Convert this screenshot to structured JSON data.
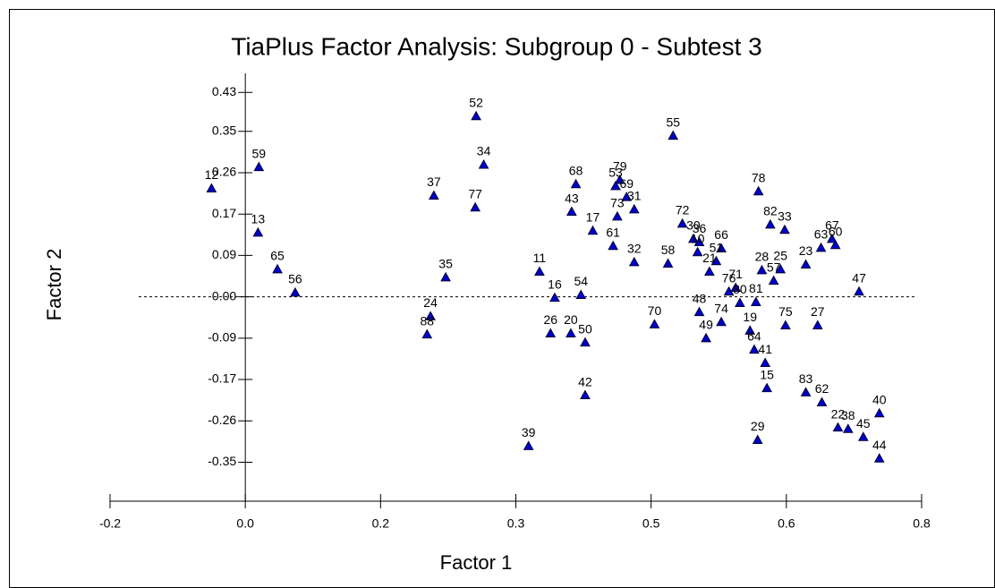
{
  "chart_data": {
    "type": "scatter",
    "title": "TiaPlus Factor Analysis: Subgroup 0 - Subtest 3",
    "x_label": "Factor 1",
    "y_label": "Factor 2",
    "xlim": [
      -0.16,
      0.8
    ],
    "ylim": [
      -0.43,
      0.47
    ],
    "xticks": [
      {
        "value": -0.16,
        "label": "-0.2"
      },
      {
        "value": 0,
        "label": "0.0"
      },
      {
        "value": 0.16,
        "label": "0.2"
      },
      {
        "value": 0.32,
        "label": "0.3"
      },
      {
        "value": 0.48,
        "label": "0.5"
      },
      {
        "value": 0.64,
        "label": "0.6"
      },
      0.8
    ],
    "yticks": [
      0.43,
      {
        "value": 0.348,
        "label": "0.35"
      },
      {
        "value": 0.261,
        "label": "0.26"
      },
      {
        "value": 0.174,
        "label": "0.17"
      },
      {
        "value": 0.087,
        "label": "0.09"
      },
      {
        "value": 0,
        "label": "0.00"
      },
      {
        "value": -0.087,
        "label": "-0.09"
      },
      {
        "value": -0.174,
        "label": "-0.17"
      },
      {
        "value": -0.261,
        "label": "-0.26"
      },
      {
        "value": -0.348,
        "label": "-0.35"
      }
    ],
    "series": [
      {
        "color": "#0000cc",
        "point_labels": [
          "12",
          "59",
          "13",
          "65",
          "56",
          "37",
          "35",
          "24",
          "88",
          "52",
          "34",
          "77",
          "39",
          "11",
          "16",
          "26",
          "20",
          "54",
          "50",
          "42",
          "68",
          "43",
          "17",
          "61",
          "73",
          "79",
          "53",
          "69",
          "31",
          "32",
          "72",
          "30",
          "36",
          "10",
          "66",
          "51",
          "21",
          "58",
          "55",
          "78",
          "82",
          "33",
          "63",
          "67",
          "60",
          "23",
          "28",
          "25",
          "57",
          "47",
          "71",
          "76",
          "80",
          "81",
          "48",
          "74",
          "49",
          "70",
          "19",
          "64",
          "41",
          "75",
          "27",
          "15",
          "29",
          "83",
          "62",
          "22",
          "38",
          "45",
          "40",
          "44"
        ],
        "x": [
          -0.04,
          0.016,
          0.015,
          0.038,
          0.059,
          0.223,
          0.237,
          0.219,
          0.215,
          0.273,
          0.282,
          0.272,
          0.335,
          0.348,
          0.366,
          0.361,
          0.385,
          0.397,
          0.402,
          0.402,
          0.391,
          0.386,
          0.411,
          0.435,
          0.44,
          0.443,
          0.438,
          0.451,
          0.46,
          0.46,
          0.517,
          0.53,
          0.537,
          0.535,
          0.563,
          0.557,
          0.549,
          0.5,
          0.506,
          0.607,
          0.621,
          0.638,
          0.681,
          0.694,
          0.698,
          0.663,
          0.611,
          0.633,
          0.625,
          0.726,
          0.58,
          0.572,
          0.585,
          0.604,
          0.537,
          0.563,
          0.545,
          0.484,
          0.597,
          0.602,
          0.615,
          0.639,
          0.677,
          0.617,
          0.606,
          0.663,
          0.682,
          0.701,
          0.713,
          0.731,
          0.75,
          0.75
        ],
        "values": [
          0.228,
          0.273,
          0.135,
          0.058,
          0.009,
          0.213,
          0.041,
          -0.041,
          -0.079,
          0.38,
          0.278,
          0.188,
          -0.314,
          0.053,
          -0.002,
          -0.077,
          -0.077,
          0.004,
          -0.096,
          -0.207,
          0.237,
          0.179,
          0.139,
          0.107,
          0.169,
          0.246,
          0.233,
          0.21,
          0.184,
          0.073,
          0.154,
          0.122,
          0.115,
          0.094,
          0.102,
          0.075,
          0.053,
          0.07,
          0.339,
          0.222,
          0.152,
          0.141,
          0.103,
          0.122,
          0.109,
          0.068,
          0.056,
          0.058,
          0.034,
          0.011,
          0.019,
          0.011,
          -0.013,
          -0.011,
          -0.032,
          -0.053,
          -0.087,
          -0.058,
          -0.071,
          -0.111,
          -0.139,
          -0.06,
          -0.06,
          -0.192,
          -0.301,
          -0.201,
          -0.222,
          -0.275,
          -0.278,
          -0.295,
          -0.245,
          -0.34
        ]
      }
    ]
  }
}
